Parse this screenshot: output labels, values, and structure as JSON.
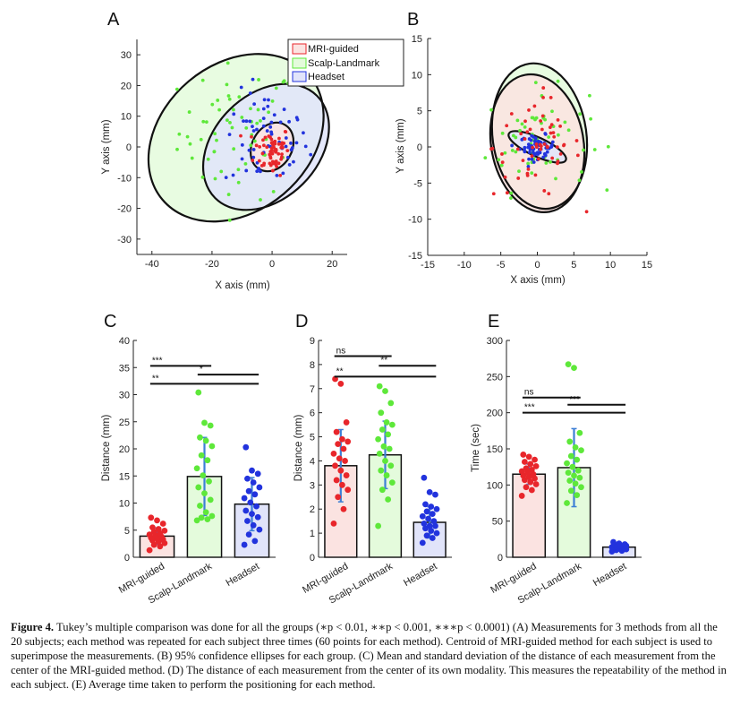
{
  "colors": {
    "mri": "#e8262b",
    "scalp": "#5ee83a",
    "headset": "#2233dd",
    "mri_fill": "#fbe3e1",
    "scalp_fill": "#e4fbdc",
    "headset_fill": "#e1e4fa",
    "error_bar": "#3d7fd6"
  },
  "chart_data": [
    {
      "panel": "A",
      "type": "scatter",
      "xlabel": "X axis (mm)",
      "ylabel": "Y axis (mm)",
      "xlim": [
        -45,
        25
      ],
      "ylim": [
        -35,
        35
      ],
      "xticks": [
        -40,
        -20,
        0,
        20
      ],
      "yticks": [
        -30,
        -20,
        -10,
        0,
        10,
        20,
        30
      ],
      "legend": {
        "position": "top-right",
        "entries": [
          "MRI-guided",
          "Scalp-Landmark",
          "Headset"
        ]
      },
      "series": [
        {
          "name": "MRI-guided",
          "center": [
            0,
            -1
          ],
          "spread": [
            3,
            4
          ],
          "count": 60
        },
        {
          "name": "Scalp-Landmark",
          "center": [
            -11,
            5
          ],
          "spread": [
            10,
            11
          ],
          "count": 60
        },
        {
          "name": "Headset",
          "center": [
            -2,
            2
          ],
          "spread": [
            7,
            8
          ],
          "count": 60
        }
      ],
      "ellipses": [
        {
          "name": "Scalp-Landmark",
          "center": [
            -12,
            3
          ],
          "rx": 32,
          "ry": 24,
          "angle": -40
        },
        {
          "name": "Headset",
          "center": [
            -2,
            0
          ],
          "rx": 24,
          "ry": 17,
          "angle": -45
        },
        {
          "name": "MRI-guided",
          "center": [
            0,
            0
          ],
          "rx": 8.5,
          "ry": 6.5,
          "angle": -60
        }
      ]
    },
    {
      "panel": "B",
      "type": "scatter",
      "xlabel": "X axis (mm)",
      "ylabel": "Y axis (mm)",
      "xlim": [
        -15,
        15
      ],
      "ylim": [
        -15,
        15
      ],
      "xticks": [
        -15,
        -10,
        -5,
        0,
        5,
        10,
        15
      ],
      "yticks": [
        -15,
        -10,
        -5,
        0,
        5,
        10,
        15
      ],
      "series": [
        {
          "name": "MRI-guided",
          "center": [
            0,
            0
          ],
          "spread": [
            3,
            3.5
          ],
          "count": 60
        },
        {
          "name": "Scalp-Landmark",
          "center": [
            0,
            1
          ],
          "spread": [
            3.5,
            3.5
          ],
          "count": 60
        },
        {
          "name": "Headset",
          "center": [
            0,
            0
          ],
          "spread": [
            1.2,
            0.8
          ],
          "count": 60
        }
      ],
      "ellipses": [
        {
          "name": "Scalp-Landmark",
          "center": [
            0.3,
            1.5
          ],
          "rx": 10,
          "ry": 6.5,
          "angle": 82
        },
        {
          "name": "MRI-guided",
          "center": [
            0,
            0.5
          ],
          "rx": 9.5,
          "ry": 6.4,
          "angle": 80
        },
        {
          "name": "Headset",
          "center": [
            0,
            0
          ],
          "rx": 4.3,
          "ry": 1.3,
          "angle": 25
        }
      ]
    },
    {
      "panel": "C",
      "type": "bar",
      "ylabel": "Distance (mm)",
      "ylim": [
        0,
        40
      ],
      "yticks": [
        0,
        5,
        10,
        15,
        20,
        25,
        30,
        35,
        40
      ],
      "categories": [
        "MRI-guided",
        "Scalp-Landmark",
        "Headset"
      ],
      "values": [
        3.9,
        14.9,
        9.8
      ],
      "errors": [
        1.5,
        7.2,
        4.9
      ],
      "points": [
        [
          1.3,
          2.0,
          2.3,
          2.6,
          2.9,
          3.1,
          3.3,
          3.5,
          3.6,
          3.8,
          4.0,
          4.2,
          4.4,
          4.7,
          4.9,
          5.2,
          5.5,
          6.2,
          6.8,
          7.3
        ],
        [
          6.8,
          7.0,
          7.3,
          7.6,
          8.3,
          9.5,
          10.6,
          11.8,
          12.9,
          14.0,
          15.1,
          16.4,
          17.9,
          18.8,
          20.5,
          21.5,
          22.1,
          24.3,
          24.8,
          30.4
        ],
        [
          2.3,
          3.0,
          4.2,
          5.1,
          5.9,
          6.7,
          7.4,
          8.0,
          8.6,
          9.4,
          10.1,
          10.9,
          11.6,
          12.2,
          12.9,
          13.8,
          14.5,
          15.4,
          16.0,
          20.3
        ]
      ],
      "significance": [
        {
          "pair": [
            0,
            1
          ],
          "label": "***",
          "y": 35.3
        },
        {
          "pair": [
            1,
            2
          ],
          "label": "*",
          "y": 33.7
        },
        {
          "pair": [
            0,
            2
          ],
          "label": "**",
          "y": 32.0
        }
      ]
    },
    {
      "panel": "D",
      "type": "bar",
      "ylabel": "Distance (mm)",
      "ylim": [
        0,
        9
      ],
      "yticks": [
        0,
        1,
        2,
        3,
        4,
        5,
        6,
        7,
        8,
        9
      ],
      "categories": [
        "MRI-guided",
        "Scalp-Landmark",
        "Headset"
      ],
      "values": [
        3.8,
        4.25,
        1.45
      ],
      "errors": [
        1.5,
        1.4,
        0.65
      ],
      "points": [
        [
          1.4,
          2.0,
          2.5,
          2.8,
          3.0,
          3.2,
          3.4,
          3.6,
          3.8,
          4.0,
          4.1,
          4.3,
          4.5,
          4.7,
          4.8,
          4.9,
          5.2,
          5.6,
          7.2,
          7.4
        ],
        [
          1.3,
          2.4,
          2.8,
          3.1,
          3.4,
          3.6,
          3.8,
          4.0,
          4.3,
          4.5,
          4.6,
          4.9,
          5.1,
          5.3,
          5.5,
          5.6,
          6.0,
          6.4,
          6.9,
          7.1
        ],
        [
          0.6,
          0.8,
          0.9,
          1.0,
          1.1,
          1.2,
          1.3,
          1.3,
          1.4,
          1.5,
          1.6,
          1.7,
          1.8,
          1.9,
          2.0,
          2.1,
          2.2,
          2.6,
          2.7,
          3.3
        ]
      ],
      "significance": [
        {
          "pair": [
            0,
            1
          ],
          "label": "ns",
          "y": 8.35
        },
        {
          "pair": [
            1,
            2
          ],
          "label": "**",
          "y": 7.95
        },
        {
          "pair": [
            0,
            2
          ],
          "label": "**",
          "y": 7.5
        }
      ]
    },
    {
      "panel": "E",
      "type": "bar",
      "ylabel": "Time (sec)",
      "ylim": [
        0,
        300
      ],
      "yticks": [
        0,
        50,
        100,
        150,
        200,
        250,
        300
      ],
      "categories": [
        "MRI-guided",
        "Scalp-Landmark",
        "Headset"
      ],
      "values": [
        115,
        124,
        14
      ],
      "errors": [
        14,
        54,
        3.5
      ],
      "points": [
        [
          85,
          93,
          97,
          101,
          104,
          107,
          109,
          111,
          113,
          115,
          117,
          119,
          121,
          123,
          126,
          129,
          132,
          135,
          139,
          142
        ],
        [
          75,
          86,
          92,
          97,
          102,
          106,
          110,
          113,
          117,
          120,
          125,
          130,
          135,
          140,
          148,
          152,
          160,
          172,
          262,
          267
        ],
        [
          8,
          9,
          10,
          11,
          11,
          12,
          12,
          13,
          13,
          13,
          14,
          14,
          15,
          15,
          16,
          16,
          17,
          18,
          19,
          21
        ]
      ],
      "significance": [
        {
          "pair": [
            0,
            1
          ],
          "label": "ns",
          "y": 221
        },
        {
          "pair": [
            1,
            2
          ],
          "label": "***",
          "y": 211
        },
        {
          "pair": [
            0,
            2
          ],
          "label": "***",
          "y": 200
        }
      ]
    }
  ],
  "caption": {
    "label": "Figure 4.",
    "text": "Tukey’s multiple comparison was done for all the groups (∗p < 0.01, ∗∗p < 0.001, ∗∗∗p < 0.0001) (A) Measurements for 3 methods from all the 20 subjects; each method was repeated for each subject three times (60 points for each method). Centroid of MRI-guided method for each subject is used to superimpose the measurements. (B) 95% confidence ellipses for each group. (C) Mean and standard deviation of the distance of each measurement from the center of the MRI-guided method. (D) The distance of each measurement from the center of its own modality. This measures the repeatability of the method in each subject. (E) Average time taken to perform the positioning for each method."
  }
}
